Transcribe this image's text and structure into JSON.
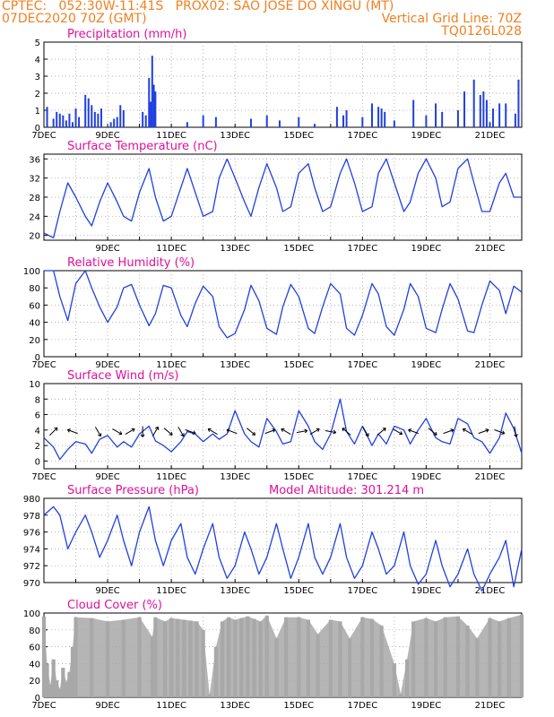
{
  "header": {
    "left_line1": "CPTEC:   052:30W-11:41S   PROX02: SAO JOSE DO XINGU (MT)",
    "left_line2": "07DEC2020 70Z (GMT)",
    "right_line2": "Vertical Grid Line: 70Z",
    "right_line3": "TQ0126L028"
  },
  "colors": {
    "header": "#f08020",
    "title": "#e0109a",
    "series": "#2040e0",
    "cloud": "#a8a8a8"
  },
  "chart_data": [
    {
      "type": "bar",
      "title": "Precipitation (mm/h)",
      "ylim": [
        0,
        5
      ],
      "yticks": [
        0,
        1,
        2,
        3,
        4,
        5
      ],
      "x_ticks": [
        "7DEC",
        "9DEC",
        "11DEC",
        "13DEC",
        "15DEC",
        "17DEC",
        "19DEC",
        "21DEC"
      ],
      "x_range_days": [
        7,
        22
      ],
      "series": [
        {
          "x": [
            7.1,
            7.3,
            7.4,
            7.5,
            7.6,
            7.7,
            7.8,
            7.9,
            8.0,
            8.1,
            8.3,
            8.4,
            8.5,
            8.6,
            8.7,
            8.8,
            9.1,
            9.2,
            9.3,
            9.4,
            9.5,
            10.1,
            10.2,
            10.3,
            10.35,
            10.4,
            10.45,
            10.5,
            11.5,
            12.0,
            12.4,
            13.5,
            14.0,
            14.4,
            15.0,
            15.5,
            16.2,
            16.4,
            16.5,
            17.0,
            17.3,
            17.5,
            17.6,
            17.7,
            18.0,
            18.6,
            19.0,
            19.3,
            19.5,
            20.0,
            20.2,
            20.5,
            20.7,
            20.8,
            20.9,
            21.0,
            21.1,
            21.3,
            21.5,
            21.8,
            21.9
          ],
          "values": [
            1.2,
            0.5,
            0.9,
            0.8,
            0.7,
            0.4,
            0.8,
            0.3,
            1.1,
            0.6,
            1.9,
            1.7,
            1.3,
            0.9,
            0.8,
            1.1,
            0.3,
            0.5,
            0.6,
            1.3,
            1.0,
            0.9,
            0.7,
            2.9,
            1.5,
            4.2,
            2.5,
            2.1,
            0.3,
            0.7,
            0.6,
            0.5,
            0.7,
            0.4,
            0.6,
            0.2,
            1.2,
            0.7,
            1.0,
            0.6,
            1.4,
            1.2,
            1.1,
            0.9,
            0.4,
            1.6,
            0.7,
            1.4,
            0.9,
            1.0,
            2.1,
            2.8,
            1.9,
            2.1,
            1.6,
            0.3,
            1.1,
            1.4,
            1.4,
            0.8,
            2.8
          ]
        }
      ]
    },
    {
      "type": "line",
      "title": "Surface Temperature (nC)",
      "ylim": [
        19,
        37
      ],
      "yticks": [
        20,
        24,
        28,
        32,
        36
      ],
      "x_ticks": [
        "9DEC",
        "11DEC",
        "13DEC",
        "15DEC",
        "17DEC",
        "19DEC",
        "21DEC"
      ],
      "x_range_days": [
        7,
        22
      ],
      "series": [
        {
          "x": [
            7.0,
            7.3,
            7.5,
            7.75,
            8.0,
            8.3,
            8.5,
            8.75,
            9.0,
            9.3,
            9.5,
            9.75,
            10.0,
            10.3,
            10.5,
            10.75,
            11.0,
            11.3,
            11.5,
            11.75,
            12.0,
            12.3,
            12.5,
            12.75,
            13.0,
            13.3,
            13.5,
            13.75,
            14.0,
            14.3,
            14.5,
            14.75,
            15.0,
            15.3,
            15.5,
            15.75,
            16.0,
            16.3,
            16.5,
            16.75,
            17.0,
            17.3,
            17.5,
            17.75,
            18.0,
            18.3,
            18.5,
            18.75,
            19.0,
            19.3,
            19.5,
            19.75,
            20.0,
            20.3,
            20.5,
            20.75,
            21.0,
            21.3,
            21.5,
            21.75,
            22.0
          ],
          "values": [
            20.5,
            19.5,
            25,
            31,
            28,
            24,
            22,
            27,
            31,
            27,
            24,
            23,
            29,
            34,
            28,
            23,
            24,
            30,
            34,
            29,
            24,
            25,
            32,
            36,
            32,
            27,
            24,
            30,
            35,
            30,
            25,
            26,
            33,
            35,
            30,
            25,
            26,
            33,
            36,
            31,
            25,
            26,
            33,
            36,
            31,
            25,
            27,
            33,
            36,
            32,
            26,
            27,
            34,
            36,
            31,
            25,
            25,
            31,
            33,
            28,
            28
          ]
        }
      ]
    },
    {
      "type": "line",
      "title": "Relative Humidity (%)",
      "ylim": [
        0,
        100
      ],
      "yticks": [
        0,
        20,
        40,
        60,
        80,
        100
      ],
      "x_ticks": [
        "7DEC",
        "9DEC",
        "11DEC",
        "13DEC",
        "15DEC",
        "17DEC",
        "19DEC",
        "21DEC"
      ],
      "x_range_days": [
        7,
        22
      ],
      "series": [
        {
          "x": [
            7.0,
            7.3,
            7.5,
            7.75,
            8.0,
            8.3,
            8.5,
            8.75,
            9.0,
            9.3,
            9.5,
            9.75,
            10.0,
            10.3,
            10.5,
            10.75,
            11.0,
            11.3,
            11.5,
            11.75,
            12.0,
            12.3,
            12.5,
            12.75,
            13.0,
            13.3,
            13.5,
            13.75,
            14.0,
            14.3,
            14.5,
            14.75,
            15.0,
            15.3,
            15.5,
            15.75,
            16.0,
            16.3,
            16.5,
            16.75,
            17.0,
            17.3,
            17.5,
            17.75,
            18.0,
            18.3,
            18.5,
            18.75,
            19.0,
            19.3,
            19.5,
            19.75,
            20.0,
            20.3,
            20.5,
            20.75,
            21.0,
            21.3,
            21.5,
            21.75,
            22.0
          ],
          "values": [
            100,
            100,
            70,
            42,
            85,
            100,
            80,
            58,
            40,
            58,
            80,
            84,
            60,
            36,
            50,
            83,
            80,
            48,
            35,
            62,
            82,
            70,
            35,
            22,
            27,
            55,
            83,
            65,
            33,
            26,
            58,
            84,
            70,
            33,
            27,
            58,
            85,
            73,
            33,
            25,
            48,
            85,
            73,
            35,
            25,
            55,
            85,
            70,
            33,
            28,
            55,
            85,
            67,
            30,
            28,
            60,
            88,
            77,
            50,
            82,
            75
          ]
        }
      ]
    },
    {
      "type": "line",
      "title": "Surface Wind (m/s)",
      "ylim": [
        -1,
        10
      ],
      "yticks": [
        0,
        2,
        4,
        6,
        8,
        10
      ],
      "x_ticks": [
        "7DEC",
        "9DEC",
        "11DEC",
        "13DEC",
        "15DEC",
        "17DEC",
        "19DEC",
        "21DEC"
      ],
      "x_range_days": [
        7,
        22
      ],
      "series": [
        {
          "x": [
            7.0,
            7.3,
            7.5,
            7.75,
            8.0,
            8.3,
            8.5,
            8.75,
            9.0,
            9.3,
            9.5,
            9.75,
            10.0,
            10.3,
            10.5,
            10.75,
            11.0,
            11.3,
            11.5,
            11.75,
            12.0,
            12.3,
            12.5,
            12.75,
            13.0,
            13.3,
            13.5,
            13.75,
            14.0,
            14.3,
            14.5,
            14.75,
            15.0,
            15.3,
            15.5,
            15.75,
            16.0,
            16.3,
            16.5,
            16.75,
            17.0,
            17.3,
            17.5,
            17.75,
            18.0,
            18.3,
            18.5,
            18.75,
            19.0,
            19.3,
            19.5,
            19.75,
            20.0,
            20.3,
            20.5,
            20.75,
            21.0,
            21.3,
            21.5,
            21.75,
            22.0
          ],
          "values": [
            3,
            1.8,
            0.2,
            1.5,
            2.5,
            2.2,
            1,
            2.8,
            3.3,
            1.8,
            2.5,
            1.8,
            3.5,
            4.5,
            2.6,
            2,
            1.2,
            2.5,
            3.8,
            3.5,
            2.5,
            3.5,
            2.8,
            3.5,
            6.5,
            3.5,
            2.5,
            1.8,
            5.5,
            3.8,
            2.2,
            2.5,
            6.5,
            4.5,
            2.5,
            1.5,
            3.5,
            8,
            3.8,
            2.2,
            4.5,
            2,
            3.5,
            2.2,
            4.5,
            4,
            2.2,
            4,
            5.5,
            3,
            2.5,
            2.2,
            5.5,
            4.8,
            3,
            2.5,
            1,
            3,
            6.2,
            4.2,
            1
          ]
        }
      ]
    },
    {
      "type": "line",
      "title": "Surface Pressure (hPa)",
      "annotation": "Model Altitude: 301.214 m",
      "ylim": [
        970,
        980
      ],
      "yticks": [
        970,
        972,
        974,
        976,
        978,
        980
      ],
      "x_ticks": [
        "9DEC",
        "11DEC",
        "13DEC",
        "15DEC",
        "17DEC",
        "19DEC",
        "21DEC"
      ],
      "x_range_days": [
        7,
        22
      ],
      "series": [
        {
          "x": [
            7.0,
            7.3,
            7.5,
            7.75,
            8.0,
            8.3,
            8.5,
            8.75,
            9.0,
            9.3,
            9.5,
            9.75,
            10.0,
            10.3,
            10.5,
            10.75,
            11.0,
            11.3,
            11.5,
            11.75,
            12.0,
            12.3,
            12.5,
            12.75,
            13.0,
            13.3,
            13.5,
            13.75,
            14.0,
            14.3,
            14.5,
            14.75,
            15.0,
            15.3,
            15.5,
            15.75,
            16.0,
            16.3,
            16.5,
            16.75,
            17.0,
            17.3,
            17.5,
            17.75,
            18.0,
            18.3,
            18.5,
            18.75,
            19.0,
            19.3,
            19.5,
            19.75,
            20.0,
            20.3,
            20.5,
            20.75,
            21.0,
            21.3,
            21.5,
            21.75,
            22.0
          ],
          "values": [
            978,
            979,
            978,
            974,
            976,
            978,
            976,
            973,
            975,
            978,
            975,
            972,
            976,
            979,
            975,
            972,
            975,
            977,
            973,
            971,
            974,
            977,
            973,
            970.5,
            972,
            976,
            974,
            971,
            973,
            977,
            974,
            970.5,
            973,
            977,
            973,
            971,
            973,
            977,
            973,
            970.5,
            972,
            976,
            974,
            971,
            972,
            976,
            972,
            969.8,
            971,
            975,
            972,
            969.5,
            971,
            974,
            971,
            969,
            971,
            973,
            975,
            969.5,
            974
          ]
        }
      ]
    },
    {
      "type": "bar",
      "title": "Cloud Cover (%)",
      "ylim": [
        0,
        100
      ],
      "yticks": [
        0,
        20,
        40,
        60,
        80,
        100
      ],
      "x_ticks": [
        "7DEC",
        "9DEC",
        "11DEC",
        "13DEC",
        "15DEC",
        "17DEC",
        "19DEC",
        "21DEC"
      ],
      "x_range_days": [
        7,
        22
      ],
      "series": [
        {
          "x": [
            7.0,
            7.1,
            7.2,
            7.3,
            7.4,
            7.5,
            7.6,
            7.7,
            7.8,
            7.9,
            8.0,
            8.5,
            9.0,
            9.5,
            10.0,
            10.4,
            10.5,
            10.8,
            11.0,
            11.2,
            11.4,
            11.6,
            11.8,
            12.0,
            12.2,
            12.4,
            12.6,
            12.8,
            13.0,
            13.2,
            13.4,
            13.6,
            13.8,
            14.0,
            14.3,
            14.6,
            15.0,
            15.3,
            15.6,
            16.0,
            16.3,
            16.6,
            17.0,
            17.3,
            17.6,
            18.0,
            18.2,
            18.4,
            18.6,
            19.0,
            19.3,
            19.6,
            20.0,
            20.3,
            20.6,
            21.0,
            21.3,
            21.6,
            22.0
          ],
          "values": [
            96,
            40,
            15,
            45,
            20,
            10,
            35,
            18,
            30,
            60,
            95,
            94,
            90,
            92,
            95,
            72,
            95,
            90,
            94,
            93,
            92,
            91,
            90,
            80,
            3,
            60,
            90,
            95,
            92,
            94,
            96,
            93,
            90,
            97,
            70,
            95,
            95,
            92,
            75,
            92,
            90,
            70,
            95,
            93,
            85,
            40,
            4,
            45,
            90,
            94,
            90,
            95,
            96,
            85,
            70,
            94,
            90,
            94,
            98
          ]
        }
      ]
    }
  ]
}
